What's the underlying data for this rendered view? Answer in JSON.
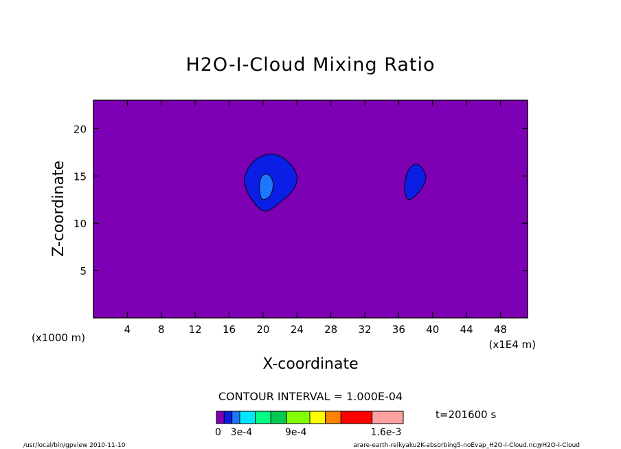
{
  "chart_data": {
    "type": "contour",
    "title": "H2O-I-Cloud Mixing Ratio",
    "xlabel": "X-coordinate",
    "ylabel": "Z-coordinate",
    "x_unit_left": "(x1000 m)",
    "x_unit_right": "(x1E4 m)",
    "xlim": [
      0,
      51.2
    ],
    "ylim": [
      0,
      23
    ],
    "x_ticks": [
      4,
      8,
      12,
      16,
      20,
      24,
      28,
      32,
      36,
      40,
      44,
      48
    ],
    "x_tick_labels": [
      "4",
      "8",
      "12",
      "16",
      "20",
      "24",
      "28",
      "32",
      "36",
      "40",
      "44",
      "48"
    ],
    "y_ticks": [
      5,
      10,
      15,
      20
    ],
    "y_tick_labels": [
      "5",
      "10",
      "15",
      "20"
    ],
    "background_level_color": "#7d00b4",
    "contours": [
      {
        "name": "cloud-1-outer",
        "level_color": "#0a1ee6",
        "points": [
          [
            20.2,
            11.3
          ],
          [
            22.0,
            12.2
          ],
          [
            23.6,
            13.6
          ],
          [
            24.0,
            14.9
          ],
          [
            23.2,
            16.3
          ],
          [
            21.4,
            17.3
          ],
          [
            19.6,
            17.0
          ],
          [
            18.4,
            16.0
          ],
          [
            17.8,
            14.5
          ],
          [
            18.6,
            12.6
          ]
        ]
      },
      {
        "name": "cloud-1-inner",
        "level_color": "#1e78ff",
        "points": [
          [
            20.1,
            12.5
          ],
          [
            20.9,
            13.0
          ],
          [
            21.2,
            14.2
          ],
          [
            20.7,
            15.1
          ],
          [
            19.9,
            15.0
          ],
          [
            19.6,
            14.0
          ],
          [
            19.7,
            12.9
          ]
        ]
      },
      {
        "name": "cloud-2",
        "level_color": "#0a1ee6",
        "points": [
          [
            37.2,
            12.5
          ],
          [
            38.5,
            13.4
          ],
          [
            39.2,
            14.8
          ],
          [
            38.6,
            16.0
          ],
          [
            37.8,
            16.2
          ],
          [
            37.0,
            15.3
          ],
          [
            36.7,
            13.6
          ]
        ]
      }
    ],
    "contour_interval_label": "CONTOUR INTERVAL = 1.000E-04",
    "time_label": "t=201600 s",
    "colorbar": {
      "colors": [
        "#7d00b4",
        "#0a1ee6",
        "#1e78ff",
        "#00e6ff",
        "#00ff82",
        "#00c850",
        "#82ff00",
        "#ffff00",
        "#ff8200",
        "#ff0000",
        "#ffa0a0"
      ],
      "widths": [
        1,
        1,
        1,
        2,
        2,
        2,
        3,
        2,
        2,
        4,
        4
      ],
      "labels": [
        {
          "text": "0",
          "index": 0
        },
        {
          "text": "3e-4",
          "index": 2
        },
        {
          "text": "9e-4",
          "index": 6
        },
        {
          "text": "1.6e-3",
          "index": 10
        }
      ]
    },
    "footer_left": "/usr/local/bin/gpview  2010-11-10",
    "footer_right": "arare-earth-reikyaku2K-absorbing5-noEvap_H2O-I-Cloud.nc@H2O-I-Cloud",
    "grid": false,
    "legend": "bottom-center"
  }
}
